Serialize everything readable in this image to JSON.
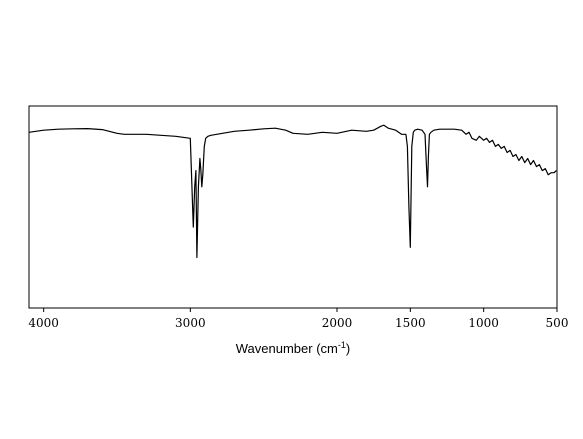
{
  "chart_data": {
    "type": "line",
    "title": "",
    "xlabel": "Wavenumber (cm",
    "xlabel_sup": "-1",
    "xlabel_suffix": ")",
    "ylabel": "",
    "x_reversed": true,
    "xlim": [
      4100,
      500
    ],
    "ylim": [
      0,
      100
    ],
    "grid": false,
    "legend": "none",
    "x_ticks": [
      4000,
      3000,
      2000,
      1500,
      1000,
      500
    ],
    "line_color": "#000000",
    "series": [
      {
        "x": [
          4100,
          4000,
          3900,
          3800,
          3700,
          3600,
          3500,
          3450,
          3400,
          3300,
          3100,
          3000,
          2980,
          2970,
          2962,
          2955,
          2945,
          2935,
          2928,
          2922,
          2915,
          2905,
          2895,
          2880,
          2860,
          2820,
          2700,
          2600,
          2500,
          2420,
          2350,
          2300,
          2200,
          2100,
          2000,
          1900,
          1800,
          1750,
          1700,
          1680,
          1650,
          1600,
          1560,
          1530,
          1520,
          1510,
          1500,
          1490,
          1480,
          1470,
          1450,
          1420,
          1400,
          1390,
          1383,
          1377,
          1370,
          1360,
          1340,
          1300,
          1250,
          1200,
          1150,
          1120,
          1100,
          1080,
          1050,
          1030,
          1000,
          980,
          960,
          940,
          920,
          900,
          880,
          860,
          840,
          820,
          800,
          780,
          760,
          740,
          720,
          700,
          680,
          660,
          640,
          620,
          600,
          580,
          560,
          540,
          520,
          505
        ],
        "y": [
          87,
          88,
          88.5,
          88.7,
          88.8,
          88.3,
          86.5,
          86,
          86,
          86,
          85,
          84,
          40,
          60,
          68,
          25,
          60,
          74,
          68,
          60,
          66,
          80,
          84,
          85,
          85.5,
          86,
          87.5,
          88,
          88.7,
          89,
          88,
          86.5,
          86,
          87,
          86.5,
          88,
          87.5,
          88,
          90,
          90.5,
          89,
          88,
          86,
          86,
          80,
          50,
          30,
          80,
          87,
          88,
          88.5,
          88,
          86,
          70,
          60,
          75,
          86,
          87,
          88,
          88.5,
          88.5,
          88.5,
          88,
          86,
          87,
          84,
          83,
          85,
          83,
          84,
          82,
          83,
          80,
          81,
          79,
          80,
          77,
          78,
          75,
          76,
          73,
          75,
          72,
          74,
          71,
          73,
          70,
          71,
          68,
          69,
          66,
          67,
          67,
          68
        ]
      }
    ]
  }
}
